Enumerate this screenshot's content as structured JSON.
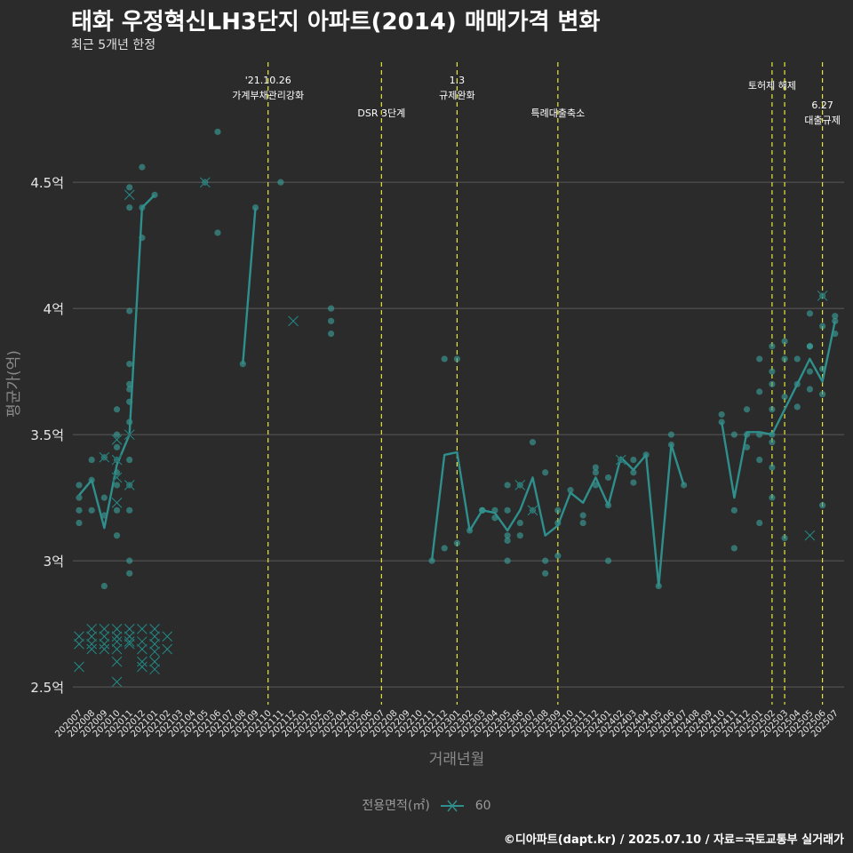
{
  "header": {
    "title": "태화 우정혁신LH3단지 아파트(2014) 매매가격 변화",
    "subtitle": "최근 5개년 한정"
  },
  "caption": "©디아파트(dapt.kr) / 2025.07.10 / 자료=국토교통부 실거래가",
  "legend": {
    "title": "전용면적(㎡)",
    "label": "60"
  },
  "colors": {
    "background": "#2b2b2b",
    "series": "#2e8f8c",
    "point": "#3aa39c",
    "event": "#e8e83a",
    "grid": "#5a5a5a",
    "text": "#e6e6e6",
    "muted": "#9a9a9a"
  },
  "chart_data": {
    "type": "line",
    "xlabel": "거래년월",
    "ylabel": "평균가(억)",
    "ylim": [
      2.43,
      4.99
    ],
    "grid": true,
    "legend_position": "bottom",
    "months": [
      "202007",
      "202008",
      "202009",
      "202010",
      "202011",
      "202012",
      "202101",
      "202102",
      "202103",
      "202104",
      "202105",
      "202106",
      "202107",
      "202108",
      "202109",
      "202110",
      "202111",
      "202112",
      "202201",
      "202202",
      "202203",
      "202204",
      "202205",
      "202206",
      "202207",
      "202208",
      "202209",
      "202210",
      "202211",
      "202212",
      "202301",
      "202302",
      "202303",
      "202304",
      "202305",
      "202306",
      "202307",
      "202308",
      "202309",
      "202310",
      "202311",
      "202312",
      "202401",
      "202402",
      "202403",
      "202404",
      "202405",
      "202406",
      "202407",
      "202408",
      "202409",
      "202410",
      "202411",
      "202412",
      "202501",
      "202502",
      "202503",
      "202504",
      "202505",
      "202506",
      "202507"
    ],
    "y_ticks": [
      {
        "value": 2.5,
        "label": "2.5억"
      },
      {
        "value": 3.0,
        "label": "3억"
      },
      {
        "value": 3.5,
        "label": "3.5억"
      },
      {
        "value": 4.0,
        "label": "4억"
      },
      {
        "value": 4.5,
        "label": "4.5억"
      }
    ],
    "series": [
      {
        "name": "60",
        "segments": [
          [
            [
              "202007",
              3.26
            ],
            [
              "202008",
              3.32
            ],
            [
              "202009",
              3.13
            ],
            [
              "202010",
              3.38
            ],
            [
              "202011",
              3.5
            ],
            [
              "202012",
              4.4
            ],
            [
              "202101",
              4.45
            ]
          ],
          [
            [
              "202108",
              3.78
            ],
            [
              "202109",
              4.4
            ]
          ],
          [
            [
              "202211",
              3.0
            ],
            [
              "202212",
              3.42
            ],
            [
              "202301",
              3.43
            ],
            [
              "202302",
              3.12
            ],
            [
              "202303",
              3.2
            ],
            [
              "202304",
              3.19
            ],
            [
              "202305",
              3.12
            ],
            [
              "202306",
              3.2
            ],
            [
              "202307",
              3.33
            ],
            [
              "202308",
              3.1
            ],
            [
              "202309",
              3.14
            ],
            [
              "202310",
              3.27
            ],
            [
              "202311",
              3.23
            ],
            [
              "202312",
              3.33
            ],
            [
              "202401",
              3.22
            ],
            [
              "202402",
              3.41
            ],
            [
              "202403",
              3.36
            ],
            [
              "202404",
              3.42
            ],
            [
              "202405",
              2.9
            ],
            [
              "202406",
              3.46
            ],
            [
              "202407",
              3.3
            ]
          ],
          [
            [
              "202410",
              3.55
            ],
            [
              "202411",
              3.25
            ],
            [
              "202412",
              3.51
            ],
            [
              "202501",
              3.51
            ],
            [
              "202502",
              3.5
            ],
            [
              "202503",
              3.6
            ],
            [
              "202504",
              3.7
            ],
            [
              "202505",
              3.8
            ],
            [
              "202506",
              3.71
            ],
            [
              "202507",
              3.95
            ]
          ]
        ],
        "points": [
          [
            "202007",
            3.3
          ],
          [
            "202007",
            3.25
          ],
          [
            "202007",
            3.2
          ],
          [
            "202007",
            3.15
          ],
          [
            "202008",
            3.4
          ],
          [
            "202008",
            3.32
          ],
          [
            "202008",
            3.2
          ],
          [
            "202009",
            3.25
          ],
          [
            "202009",
            3.18
          ],
          [
            "202009",
            2.9
          ],
          [
            "202009",
            3.41
          ],
          [
            "202010",
            3.6
          ],
          [
            "202010",
            3.5
          ],
          [
            "202010",
            3.45
          ],
          [
            "202010",
            3.4
          ],
          [
            "202010",
            3.35
          ],
          [
            "202010",
            3.3
          ],
          [
            "202010",
            3.2
          ],
          [
            "202010",
            3.1
          ],
          [
            "202011",
            4.48
          ],
          [
            "202011",
            4.4
          ],
          [
            "202011",
            3.99
          ],
          [
            "202011",
            3.78
          ],
          [
            "202011",
            3.7
          ],
          [
            "202011",
            3.68
          ],
          [
            "202011",
            3.63
          ],
          [
            "202011",
            3.55
          ],
          [
            "202011",
            3.4
          ],
          [
            "202011",
            3.3
          ],
          [
            "202011",
            3.2
          ],
          [
            "202011",
            3.0
          ],
          [
            "202011",
            2.95
          ],
          [
            "202012",
            4.56
          ],
          [
            "202012",
            4.4
          ],
          [
            "202012",
            4.28
          ],
          [
            "202101",
            4.45
          ],
          [
            "202105",
            4.5
          ],
          [
            "202106",
            4.7
          ],
          [
            "202106",
            4.3
          ],
          [
            "202108",
            3.78
          ],
          [
            "202109",
            4.4
          ],
          [
            "202111",
            4.5
          ],
          [
            "202203",
            4.0
          ],
          [
            "202203",
            3.95
          ],
          [
            "202203",
            3.9
          ],
          [
            "202211",
            3.0
          ],
          [
            "202212",
            3.8
          ],
          [
            "202212",
            3.05
          ],
          [
            "202301",
            3.8
          ],
          [
            "202301",
            3.07
          ],
          [
            "202302",
            3.12
          ],
          [
            "202303",
            3.2
          ],
          [
            "202303",
            3.2
          ],
          [
            "202304",
            3.2
          ],
          [
            "202304",
            3.17
          ],
          [
            "202305",
            3.3
          ],
          [
            "202305",
            3.2
          ],
          [
            "202305",
            3.1
          ],
          [
            "202305",
            3.08
          ],
          [
            "202305",
            3.0
          ],
          [
            "202306",
            3.3
          ],
          [
            "202306",
            3.15
          ],
          [
            "202306",
            3.1
          ],
          [
            "202307",
            3.47
          ],
          [
            "202307",
            3.2
          ],
          [
            "202308",
            3.35
          ],
          [
            "202308",
            3.0
          ],
          [
            "202308",
            2.95
          ],
          [
            "202309",
            3.2
          ],
          [
            "202309",
            3.15
          ],
          [
            "202309",
            3.02
          ],
          [
            "202310",
            3.28
          ],
          [
            "202311",
            3.18
          ],
          [
            "202311",
            3.15
          ],
          [
            "202312",
            3.37
          ],
          [
            "202312",
            3.35
          ],
          [
            "202312",
            3.3
          ],
          [
            "202401",
            3.33
          ],
          [
            "202401",
            3.22
          ],
          [
            "202401",
            3.0
          ],
          [
            "202402",
            3.4
          ],
          [
            "202403",
            3.4
          ],
          [
            "202403",
            3.35
          ],
          [
            "202403",
            3.31
          ],
          [
            "202404",
            3.42
          ],
          [
            "202405",
            2.9
          ],
          [
            "202406",
            3.5
          ],
          [
            "202406",
            3.46
          ],
          [
            "202407",
            3.3
          ],
          [
            "202410",
            3.58
          ],
          [
            "202410",
            3.55
          ],
          [
            "202411",
            3.5
          ],
          [
            "202411",
            3.2
          ],
          [
            "202411",
            3.05
          ],
          [
            "202412",
            3.6
          ],
          [
            "202412",
            3.5
          ],
          [
            "202412",
            3.45
          ],
          [
            "202501",
            3.8
          ],
          [
            "202501",
            3.67
          ],
          [
            "202501",
            3.5
          ],
          [
            "202501",
            3.4
          ],
          [
            "202501",
            3.15
          ],
          [
            "202502",
            3.85
          ],
          [
            "202502",
            3.75
          ],
          [
            "202502",
            3.7
          ],
          [
            "202502",
            3.6
          ],
          [
            "202502",
            3.5
          ],
          [
            "202502",
            3.47
          ],
          [
            "202502",
            3.37
          ],
          [
            "202502",
            3.25
          ],
          [
            "202503",
            3.87
          ],
          [
            "202503",
            3.8
          ],
          [
            "202503",
            3.65
          ],
          [
            "202503",
            3.09
          ],
          [
            "202504",
            3.8
          ],
          [
            "202504",
            3.7
          ],
          [
            "202504",
            3.61
          ],
          [
            "202505",
            3.98
          ],
          [
            "202505",
            3.85
          ],
          [
            "202505",
            3.85
          ],
          [
            "202505",
            3.75
          ],
          [
            "202505",
            3.68
          ],
          [
            "202506",
            4.05
          ],
          [
            "202506",
            3.93
          ],
          [
            "202506",
            3.76
          ],
          [
            "202506",
            3.66
          ],
          [
            "202506",
            3.22
          ],
          [
            "202507",
            3.97
          ],
          [
            "202507",
            3.95
          ],
          [
            "202507",
            3.9
          ]
        ],
        "crosses": [
          [
            "202007",
            2.7
          ],
          [
            "202007",
            2.67
          ],
          [
            "202007",
            2.58
          ],
          [
            "202008",
            2.73
          ],
          [
            "202008",
            2.7
          ],
          [
            "202008",
            2.67
          ],
          [
            "202008",
            2.65
          ],
          [
            "202009",
            2.73
          ],
          [
            "202009",
            2.7
          ],
          [
            "202009",
            2.67
          ],
          [
            "202009",
            2.65
          ],
          [
            "202009",
            3.41
          ],
          [
            "202010",
            2.73
          ],
          [
            "202010",
            2.7
          ],
          [
            "202010",
            2.68
          ],
          [
            "202010",
            2.65
          ],
          [
            "202010",
            2.6
          ],
          [
            "202010",
            2.52
          ],
          [
            "202010",
            3.23
          ],
          [
            "202010",
            3.33
          ],
          [
            "202010",
            3.4
          ],
          [
            "202010",
            3.48
          ],
          [
            "202011",
            2.73
          ],
          [
            "202011",
            2.7
          ],
          [
            "202011",
            2.68
          ],
          [
            "202011",
            2.67
          ],
          [
            "202011",
            3.3
          ],
          [
            "202011",
            3.5
          ],
          [
            "202011",
            4.45
          ],
          [
            "202012",
            2.73
          ],
          [
            "202012",
            2.68
          ],
          [
            "202012",
            2.65
          ],
          [
            "202012",
            2.6
          ],
          [
            "202012",
            2.58
          ],
          [
            "202101",
            2.73
          ],
          [
            "202101",
            2.7
          ],
          [
            "202101",
            2.67
          ],
          [
            "202101",
            2.64
          ],
          [
            "202101",
            2.6
          ],
          [
            "202101",
            2.57
          ],
          [
            "202102",
            2.7
          ],
          [
            "202102",
            2.65
          ],
          [
            "202105",
            4.5
          ],
          [
            "202112",
            3.95
          ],
          [
            "202306",
            3.3
          ],
          [
            "202307",
            3.2
          ],
          [
            "202402",
            3.4
          ],
          [
            "202505",
            3.1
          ],
          [
            "202506",
            4.05
          ]
        ]
      }
    ],
    "events": [
      {
        "month": "202110",
        "lines": [
          "'21.10.26",
          "가계부채관리강화"
        ],
        "row": 0
      },
      {
        "month": "202207",
        "lines": [
          "DSR 3단계"
        ],
        "row": 2
      },
      {
        "month": "202301",
        "lines": [
          "1.3",
          "규제완화"
        ],
        "row": 0
      },
      {
        "month": "202309",
        "lines": [
          "특례대출축소"
        ],
        "row": 2
      },
      {
        "month": "202502",
        "lines": [
          "토허제 해제"
        ],
        "row": 1
      },
      {
        "month": "202503",
        "lines": [],
        "row": 1
      },
      {
        "month": "202506",
        "lines": [
          "6.27",
          "대출규제"
        ],
        "row": 3
      }
    ]
  }
}
